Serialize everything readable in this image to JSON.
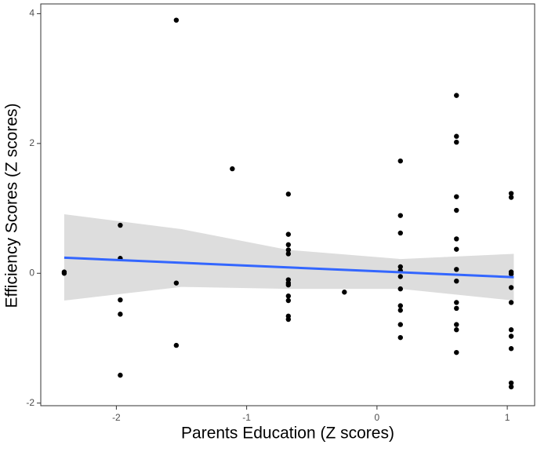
{
  "chart_data": {
    "type": "scatter",
    "xlabel": "Parents Education (Z scores)",
    "ylabel": "Efficiency Scores (Z scores)",
    "x": [
      -2.4,
      -2.4,
      -1.97,
      -1.97,
      -1.97,
      -1.97,
      -1.97,
      -1.54,
      -1.54,
      -1.54,
      -1.11,
      -0.68,
      -0.68,
      -0.68,
      -0.68,
      -0.68,
      -0.68,
      -0.68,
      -0.68,
      -0.68,
      -0.68,
      -0.68,
      -0.68,
      -0.25,
      0.18,
      0.18,
      0.18,
      0.18,
      0.18,
      0.18,
      0.18,
      0.18,
      0.18,
      0.18,
      0.18,
      0.61,
      0.61,
      0.61,
      0.61,
      0.61,
      0.61,
      0.61,
      0.61,
      0.61,
      0.61,
      0.61,
      0.61,
      0.61,
      0.61,
      1.03,
      1.03,
      1.03,
      1.03,
      1.03,
      1.03,
      1.03,
      1.03,
      1.03,
      1.03,
      1.03
    ],
    "values": [
      0.02,
      0.0,
      0.74,
      0.23,
      -0.41,
      -0.63,
      -1.57,
      3.9,
      -0.15,
      -1.11,
      1.61,
      1.22,
      0.6,
      0.44,
      0.36,
      0.3,
      -0.1,
      -0.15,
      -0.18,
      -0.35,
      -0.42,
      -0.66,
      -0.71,
      -0.29,
      1.73,
      0.89,
      0.62,
      0.1,
      0.04,
      -0.05,
      -0.24,
      -0.5,
      -0.57,
      -0.79,
      -0.99,
      2.74,
      2.11,
      2.02,
      1.18,
      0.97,
      0.53,
      0.37,
      0.06,
      -0.12,
      -0.45,
      -0.54,
      -0.79,
      -0.87,
      -1.22,
      1.23,
      1.17,
      0.02,
      -0.01,
      -0.22,
      -0.45,
      -0.87,
      -0.97,
      -1.16,
      -1.69,
      -1.75
    ],
    "color": "#000000",
    "fit": {
      "x": [
        -2.4,
        1.05
      ],
      "values": [
        0.24,
        -0.06
      ],
      "color": "#3366ff"
    },
    "band": {
      "x": [
        -2.4,
        -1.5,
        -0.68,
        0.18,
        1.05
      ],
      "upper": [
        0.91,
        0.68,
        0.36,
        0.22,
        0.3
      ],
      "lower": [
        -0.42,
        -0.21,
        -0.24,
        -0.24,
        -0.42
      ],
      "color": "#d9d9d9"
    },
    "xlim": [
      -2.58,
      1.21
    ],
    "ylim": [
      -2.04,
      4.15
    ],
    "xticks": [
      -2,
      -1,
      0,
      1
    ],
    "yticks": [
      -2,
      0,
      2,
      4
    ]
  }
}
